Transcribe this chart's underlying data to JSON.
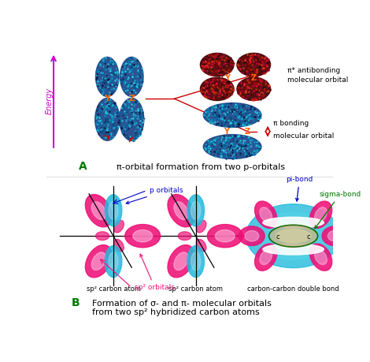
{
  "bg_color": "#ffffff",
  "section_A_label": "A",
  "section_A_text": "π-orbital formation from two p-orbitals",
  "section_B_label": "B",
  "section_B_line1": "Formation of σ- and π- molecular orbitals",
  "section_B_line2": "from two sp² hybridized carbon atoms",
  "antibonding_text1": "π* antibonding",
  "antibonding_text2": "molecular orbital",
  "bonding_text1": "π bonding",
  "bonding_text2": "molecular orbital",
  "energy_label": "Energy",
  "Y_label": "Y",
  "Z_label": "Z",
  "p_orbitals_label": "p orbitals",
  "sp2_orbitals_label": "sp² orbitals",
  "sp2_atom1": "sp² carbon atom",
  "sp2_atom2": "sp² carbon atom",
  "double_bond": "carbon-carbon double bond",
  "pi_bond": "pi-bond",
  "sigma_bond": "sigma-bond",
  "c_label": "c",
  "orange_color": "#ff6600",
  "red_color": "#cc0000",
  "blue_color": "#0000cc",
  "green_color": "#007700",
  "magenta_color": "#cc00cc",
  "cyan_color": "#22bbdd"
}
